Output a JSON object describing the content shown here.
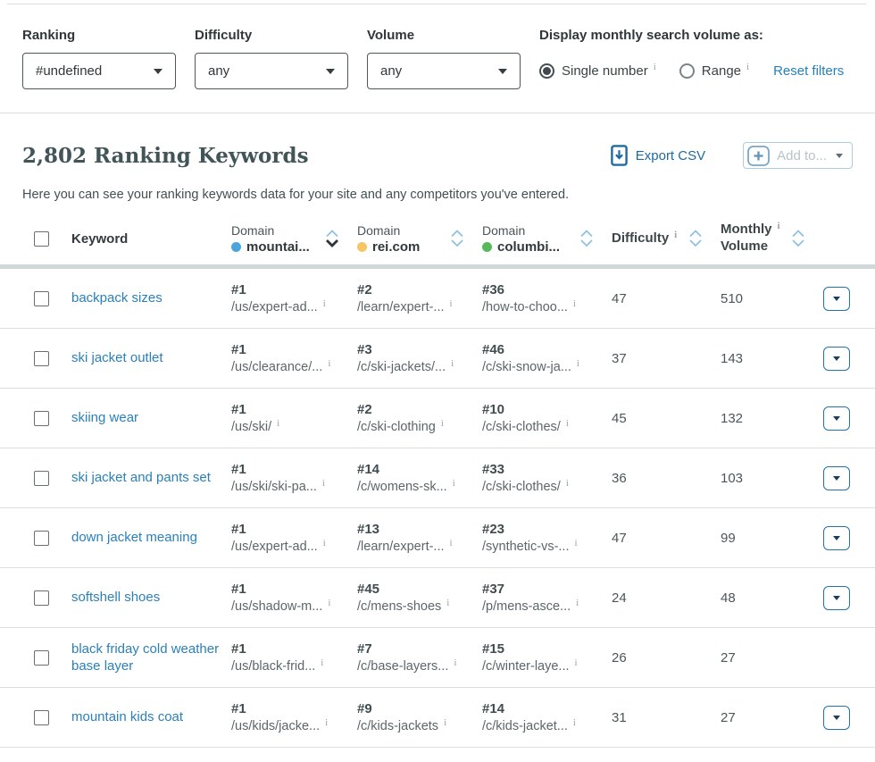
{
  "filters": {
    "ranking": {
      "label": "Ranking",
      "value": "#undefined"
    },
    "difficulty": {
      "label": "Difficulty",
      "value": "any"
    },
    "volume": {
      "label": "Volume",
      "value": "any"
    },
    "display_label": "Display monthly search volume as:",
    "single_label": "Single number",
    "range_label": "Range",
    "reset_label": "Reset filters"
  },
  "header": {
    "title": "2,802 Ranking Keywords",
    "export_label": "Export CSV",
    "add_to_label": "Add to...",
    "description": "Here you can see your ranking keywords data for your site and any competitors you've entered."
  },
  "table": {
    "columns": {
      "keyword": "Keyword",
      "domains": [
        {
          "label": "Domain",
          "name": "mountai...",
          "color": "#4ba4dc"
        },
        {
          "label": "Domain",
          "name": "rei.com",
          "color": "#f6c664"
        },
        {
          "label": "Domain",
          "name": "columbi...",
          "color": "#57b85c"
        }
      ],
      "difficulty": "Difficulty",
      "monthly_1": "Monthly",
      "monthly_2": "Volume"
    },
    "rows": [
      {
        "keyword": "backpack sizes",
        "cells": [
          {
            "rank": "#1",
            "url": "/us/expert-ad..."
          },
          {
            "rank": "#2",
            "url": "/learn/expert-..."
          },
          {
            "rank": "#36",
            "url": "/how-to-choo..."
          }
        ],
        "difficulty": "47",
        "volume": "510",
        "has_action": true
      },
      {
        "keyword": "ski jacket outlet",
        "cells": [
          {
            "rank": "#1",
            "url": "/us/clearance/..."
          },
          {
            "rank": "#3",
            "url": "/c/ski-jackets/..."
          },
          {
            "rank": "#46",
            "url": "/c/ski-snow-ja..."
          }
        ],
        "difficulty": "37",
        "volume": "143",
        "has_action": true
      },
      {
        "keyword": "skiing wear",
        "cells": [
          {
            "rank": "#1",
            "url": "/us/ski/"
          },
          {
            "rank": "#2",
            "url": "/c/ski-clothing"
          },
          {
            "rank": "#10",
            "url": "/c/ski-clothes/"
          }
        ],
        "difficulty": "45",
        "volume": "132",
        "has_action": true
      },
      {
        "keyword": "ski jacket and pants set",
        "cells": [
          {
            "rank": "#1",
            "url": "/us/ski/ski-pa..."
          },
          {
            "rank": "#14",
            "url": "/c/womens-sk..."
          },
          {
            "rank": "#33",
            "url": "/c/ski-clothes/"
          }
        ],
        "difficulty": "36",
        "volume": "103",
        "has_action": true
      },
      {
        "keyword": "down jacket meaning",
        "cells": [
          {
            "rank": "#1",
            "url": "/us/expert-ad..."
          },
          {
            "rank": "#13",
            "url": "/learn/expert-..."
          },
          {
            "rank": "#23",
            "url": "/synthetic-vs-..."
          }
        ],
        "difficulty": "47",
        "volume": "99",
        "has_action": true
      },
      {
        "keyword": "softshell shoes",
        "cells": [
          {
            "rank": "#1",
            "url": "/us/shadow-m..."
          },
          {
            "rank": "#45",
            "url": "/c/mens-shoes"
          },
          {
            "rank": "#37",
            "url": "/p/mens-asce..."
          }
        ],
        "difficulty": "24",
        "volume": "48",
        "has_action": true
      },
      {
        "keyword": "black friday cold weather base layer",
        "cells": [
          {
            "rank": "#1",
            "url": "/us/black-frid..."
          },
          {
            "rank": "#7",
            "url": "/c/base-layers..."
          },
          {
            "rank": "#15",
            "url": "/c/winter-laye..."
          }
        ],
        "difficulty": "26",
        "volume": "27",
        "has_action": false
      },
      {
        "keyword": "mountain kids coat",
        "cells": [
          {
            "rank": "#1",
            "url": "/us/kids/jacke..."
          },
          {
            "rank": "#9",
            "url": "/c/kids-jackets"
          },
          {
            "rank": "#14",
            "url": "/c/kids-jacket..."
          }
        ],
        "difficulty": "31",
        "volume": "27",
        "has_action": true
      }
    ]
  }
}
